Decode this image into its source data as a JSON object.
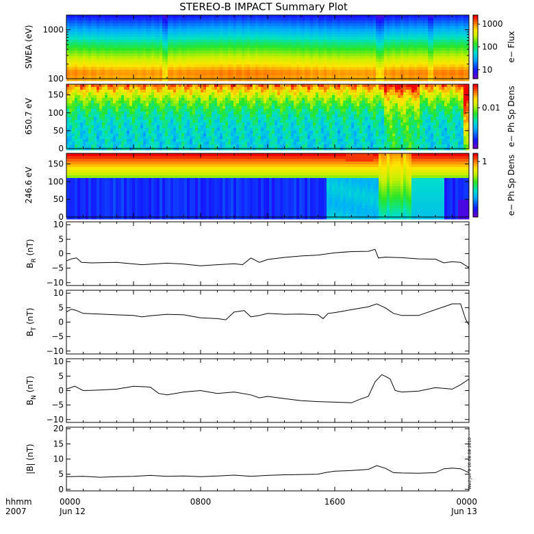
{
  "title": "STEREO-B IMPACT Summary Plot",
  "footer": {
    "unit_label": "hhmm",
    "year": "2007",
    "ticks": [
      {
        "value": 0,
        "line1": "0000",
        "line2": "Jun 12"
      },
      {
        "value": 8,
        "line1": "0800",
        "line2": ""
      },
      {
        "value": 16,
        "line1": "1600",
        "line2": ""
      },
      {
        "value": 24,
        "line1": "0000",
        "line2": "Jun 13"
      }
    ]
  },
  "timestamp": "Wed Jun  9 10:08:08 2010",
  "colors": {
    "axis": "#000000",
    "trace": "#000000",
    "background": "#ffffff"
  },
  "chart_data": [
    {
      "id": "swea",
      "type": "heatmap",
      "ylabel": "SWEA (eV)",
      "yscale": "log",
      "ylim": [
        100,
        2000
      ],
      "yticks": [
        {
          "v": 100,
          "t": "100"
        },
        {
          "v": 1000,
          "t": "1000"
        }
      ],
      "xlim": [
        0,
        24
      ],
      "colorbar": {
        "label": "e− Flux",
        "scale": "log",
        "range": [
          4,
          2500
        ],
        "ticks": [
          {
            "v": 10,
            "t": "10"
          },
          {
            "v": 100,
            "t": "100"
          },
          {
            "v": 1000,
            "t": "1000"
          }
        ]
      },
      "field": "energy_flux"
    },
    {
      "id": "pad650",
      "type": "heatmap",
      "ylabel": "650.7 eV",
      "yscale": "linear",
      "ylim": [
        0,
        180
      ],
      "yticks": [
        {
          "v": 0,
          "t": "0"
        },
        {
          "v": 50,
          "t": "50"
        },
        {
          "v": 100,
          "t": "100"
        },
        {
          "v": 150,
          "t": "150"
        }
      ],
      "xlim": [
        0,
        24
      ],
      "colorbar": {
        "label": "e− Ph Sp Dens",
        "scale": "log",
        "range": [
          0.0015,
          0.03
        ],
        "ticks": [
          {
            "v": 0.01,
            "t": "0.01"
          }
        ]
      },
      "field": "pitch_angle_650"
    },
    {
      "id": "pad246",
      "type": "heatmap",
      "ylabel": "246.6 eV",
      "yscale": "linear",
      "ylim": [
        0,
        180
      ],
      "yticks": [
        {
          "v": 0,
          "t": "0"
        },
        {
          "v": 50,
          "t": "50"
        },
        {
          "v": 100,
          "t": "100"
        },
        {
          "v": 150,
          "t": "150"
        }
      ],
      "xlim": [
        0,
        24
      ],
      "colorbar": {
        "label": "e− Ph Sp Dens",
        "scale": "log",
        "range": [
          0.1,
          1.4
        ],
        "ticks": [
          {
            "v": 1,
            "t": "1"
          }
        ]
      },
      "field": "pitch_angle_246"
    },
    {
      "id": "br",
      "type": "line",
      "ylabel_main": "B",
      "ylabel_sub": "R",
      "ylabel_unit": " (nT)",
      "ylim": [
        -11,
        11
      ],
      "yticks": [
        {
          "v": -10,
          "t": "−10"
        },
        {
          "v": -5,
          "t": "−5"
        },
        {
          "v": 0,
          "t": "0"
        },
        {
          "v": 5,
          "t": "5"
        },
        {
          "v": 10,
          "t": "10"
        }
      ],
      "xlim": [
        0,
        24
      ],
      "x": [
        0,
        0.3,
        0.6,
        0.9,
        1.5,
        3,
        4.5,
        6,
        7,
        8,
        9,
        10,
        10.5,
        11,
        11.5,
        12,
        13,
        14,
        15,
        16,
        17,
        18,
        18.4,
        18.6,
        19,
        20,
        21,
        22,
        22.5,
        23,
        23.5,
        24
      ],
      "values": [
        -2.5,
        -1.8,
        -1.5,
        -3,
        -3.2,
        -3,
        -3.8,
        -3.3,
        -3.6,
        -4.2,
        -3.8,
        -3.5,
        -3.8,
        -1.5,
        -3,
        -2,
        -1.3,
        -0.8,
        -0.5,
        0.3,
        0.7,
        0.8,
        1.5,
        -1.5,
        -1.2,
        -1.4,
        -1.8,
        -1.9,
        -3.2,
        -2.8,
        -3,
        -4.8
      ]
    },
    {
      "id": "bt",
      "type": "line",
      "ylabel_main": "B",
      "ylabel_sub": "T",
      "ylabel_unit": " (nT)",
      "ylim": [
        -11,
        11
      ],
      "yticks": [
        {
          "v": -10,
          "t": "−10"
        },
        {
          "v": -5,
          "t": "−5"
        },
        {
          "v": 0,
          "t": "0"
        },
        {
          "v": 5,
          "t": "5"
        },
        {
          "v": 10,
          "t": "10"
        }
      ],
      "xlim": [
        0,
        24
      ],
      "x": [
        0,
        0.3,
        0.6,
        1,
        2,
        3,
        4,
        4.5,
        5,
        6,
        7,
        8,
        9,
        9.5,
        10,
        10.6,
        11,
        11.5,
        12,
        13,
        14,
        15,
        15.3,
        15.6,
        16,
        17,
        18,
        18.5,
        19,
        19.5,
        20,
        21,
        22,
        22.5,
        23,
        23.5,
        23.8,
        24
      ],
      "values": [
        3.5,
        4.5,
        4,
        3,
        2.8,
        2.5,
        2.3,
        1.8,
        2.2,
        2.7,
        2.5,
        1.5,
        1.2,
        0.8,
        3.5,
        4,
        1.8,
        2.3,
        3,
        2.7,
        2.8,
        2.5,
        1.2,
        3,
        3.3,
        4.3,
        5.3,
        6.3,
        5,
        3,
        2.3,
        2.3,
        4.3,
        5.3,
        6.3,
        6.3,
        1,
        -1
      ]
    },
    {
      "id": "bn",
      "type": "line",
      "ylabel_main": "B",
      "ylabel_sub": "N",
      "ylabel_unit": " (nT)",
      "ylim": [
        -11,
        11
      ],
      "yticks": [
        {
          "v": -10,
          "t": "−10"
        },
        {
          "v": -5,
          "t": "−5"
        },
        {
          "v": 0,
          "t": "0"
        },
        {
          "v": 5,
          "t": "5"
        },
        {
          "v": 10,
          "t": "10"
        }
      ],
      "xlim": [
        0,
        24
      ],
      "x": [
        0,
        0.5,
        1,
        2,
        3,
        4,
        5,
        5.5,
        6,
        7,
        8,
        9,
        10,
        11,
        11.5,
        12,
        13,
        14,
        15,
        16,
        17,
        17.5,
        18,
        18.4,
        18.8,
        19,
        19.3,
        19.6,
        20,
        21,
        22,
        23,
        23.5,
        24
      ],
      "values": [
        0.5,
        1.5,
        0,
        0.2,
        0.5,
        1.5,
        1.2,
        -1,
        -1.5,
        -0.5,
        0,
        -1,
        -0.5,
        -1.5,
        -2.5,
        -2,
        -2.8,
        -3.5,
        -3.8,
        -4,
        -4.2,
        -3,
        -2,
        3,
        5.5,
        5,
        4,
        0,
        -0.5,
        -0.2,
        1,
        0.5,
        2,
        4
      ]
    },
    {
      "id": "bmag",
      "type": "line",
      "ylabel_main": "|B|",
      "ylabel_sub": "",
      "ylabel_unit": " (nT)",
      "ylim": [
        -0.5,
        20.5
      ],
      "yticks": [
        {
          "v": 0,
          "t": "0"
        },
        {
          "v": 5,
          "t": "5"
        },
        {
          "v": 10,
          "t": "10"
        },
        {
          "v": 15,
          "t": "15"
        },
        {
          "v": 20,
          "t": "20"
        }
      ],
      "xlim": [
        0,
        24
      ],
      "x": [
        0,
        1,
        2,
        3,
        4,
        5,
        6,
        7,
        8,
        9,
        10,
        11,
        12,
        13,
        14,
        15,
        15.5,
        16,
        17,
        18,
        18.5,
        19,
        19.5,
        20,
        21,
        22,
        22.5,
        23,
        23.5,
        24
      ],
      "values": [
        4.2,
        4.3,
        4,
        4.2,
        4.3,
        4.6,
        4.3,
        4.4,
        4.2,
        4.4,
        4.7,
        4.3,
        4.6,
        4.8,
        4.9,
        5,
        5.6,
        6,
        6.2,
        6.6,
        7.8,
        7,
        5.5,
        5.4,
        5.3,
        5.5,
        6.8,
        7,
        6.8,
        5.5
      ]
    }
  ]
}
